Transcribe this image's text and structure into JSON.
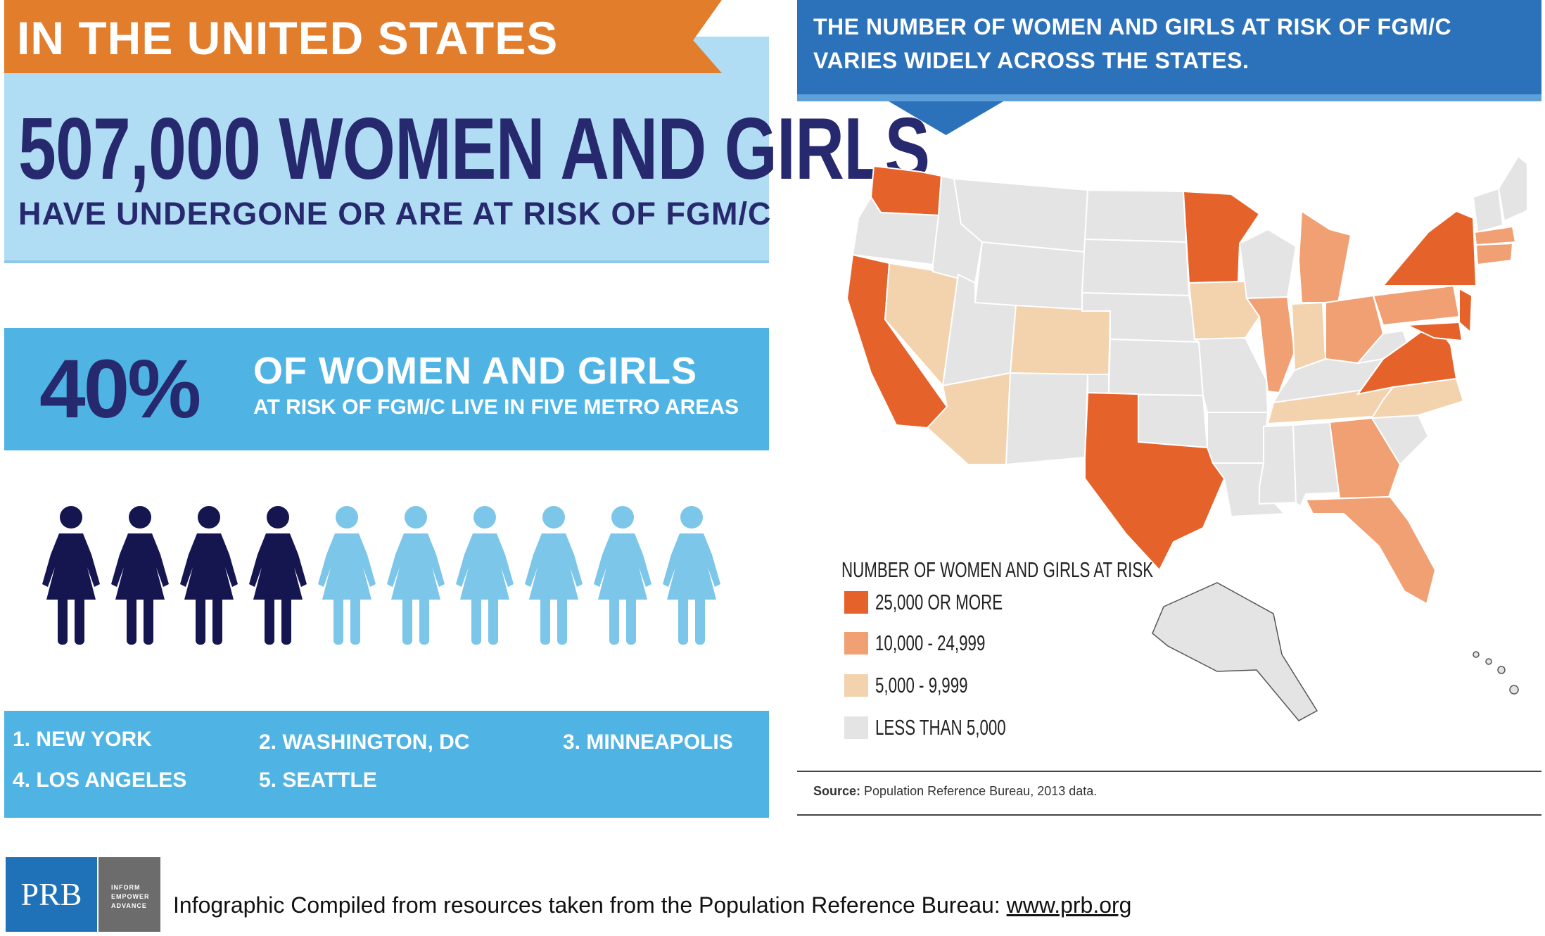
{
  "left": {
    "banner_title": "IN THE UNITED STATES",
    "big_number": "507,000 WOMEN AND GIRLS",
    "big_sub": "HAVE UNDERGONE OR ARE AT RISK OF FGM/C",
    "percent_value": "40%",
    "percent_line1": "OF WOMEN AND GIRLS",
    "percent_line2": "AT RISK OF FGM/C LIVE IN FIVE METRO AREAS",
    "people": {
      "highlighted": 4,
      "total": 10,
      "highlight_color": "#151550",
      "other_color": "#7cc6e9"
    },
    "metros": [
      "1. NEW YORK",
      "2. WASHINGTON, DC",
      "3. MINNEAPOLIS",
      "4. LOS ANGELES",
      "5. SEATTLE"
    ]
  },
  "right": {
    "header": "THE NUMBER OF WOMEN AND GIRLS AT RISK OF FGM/C VARIES WIDELY ACROSS THE STATES.",
    "legend_title": "NUMBER OF WOMEN AND GIRLS AT RISK",
    "legend": [
      {
        "label": "25,000 OR MORE",
        "color": "#e5622a"
      },
      {
        "label": "10,000 - 24,999",
        "color": "#f0a073"
      },
      {
        "label": "5,000 - 9,999",
        "color": "#f3d2ae"
      },
      {
        "label": "LESS THAN 5,000",
        "color": "#e4e4e4"
      }
    ],
    "source_label": "Source:",
    "source_text": " Population Reference Bureau, 2013 data."
  },
  "footer": {
    "logo": "PRB",
    "tagline": [
      "INFORM",
      "EMPOWER",
      "ADVANCE"
    ],
    "text": "Infographic Compiled from resources taken from the Population Reference Bureau: ",
    "link": "www.prb.org"
  },
  "colors": {
    "orange_banner": "#e27d2b",
    "light_blue": "#b1ddf4",
    "medium_blue": "#4fb4e3",
    "navy": "#27296e",
    "header_blue": "#2c72ba"
  }
}
